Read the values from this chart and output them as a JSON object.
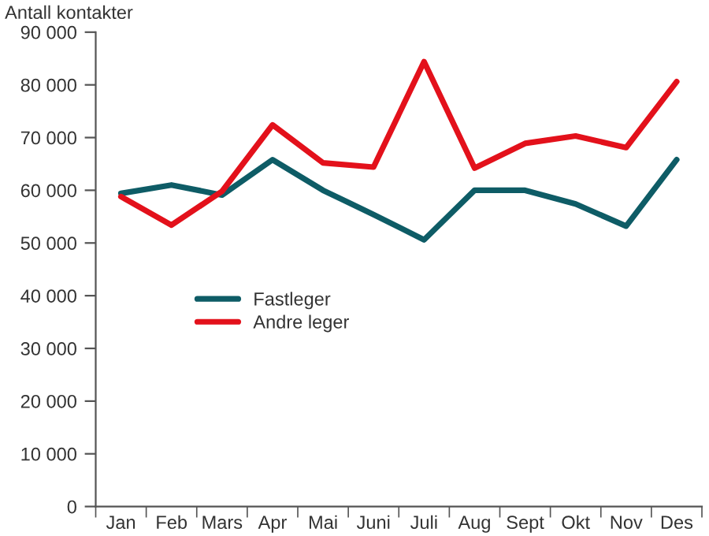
{
  "chart_data": {
    "type": "line",
    "ylabel": "Antall kontakter",
    "categories": [
      "Jan",
      "Feb",
      "Mars",
      "Apr",
      "Mai",
      "Juni",
      "Juli",
      "Aug",
      "Sept",
      "Okt",
      "Nov",
      "Des"
    ],
    "series": [
      {
        "name": "Fastleger",
        "color": "#0e5c66",
        "values": [
          59400,
          61000,
          59100,
          65800,
          60000,
          55400,
          50600,
          60000,
          60000,
          57400,
          53200,
          65800
        ]
      },
      {
        "name": "Andre leger",
        "color": "#e3111b",
        "values": [
          58800,
          53400,
          59800,
          72400,
          65200,
          64400,
          84400,
          64200,
          68900,
          70300,
          68100,
          80600
        ]
      }
    ],
    "ylim": [
      0,
      90000
    ],
    "yticks": [
      0,
      {
        "value": 10000,
        "label": "10 000"
      },
      {
        "value": 20000,
        "label": "20 000"
      },
      {
        "value": 30000,
        "label": "30 000"
      },
      {
        "value": 40000,
        "label": "40 000"
      },
      {
        "value": 50000,
        "label": "50 000"
      },
      {
        "value": 60000,
        "label": "60 000"
      },
      {
        "value": 70000,
        "label": "70 000"
      },
      {
        "value": 80000,
        "label": "80 000"
      },
      {
        "value": 90000,
        "label": "90 000"
      }
    ],
    "grid": false,
    "legend": "left",
    "marker": "none",
    "line_style": "solid"
  }
}
